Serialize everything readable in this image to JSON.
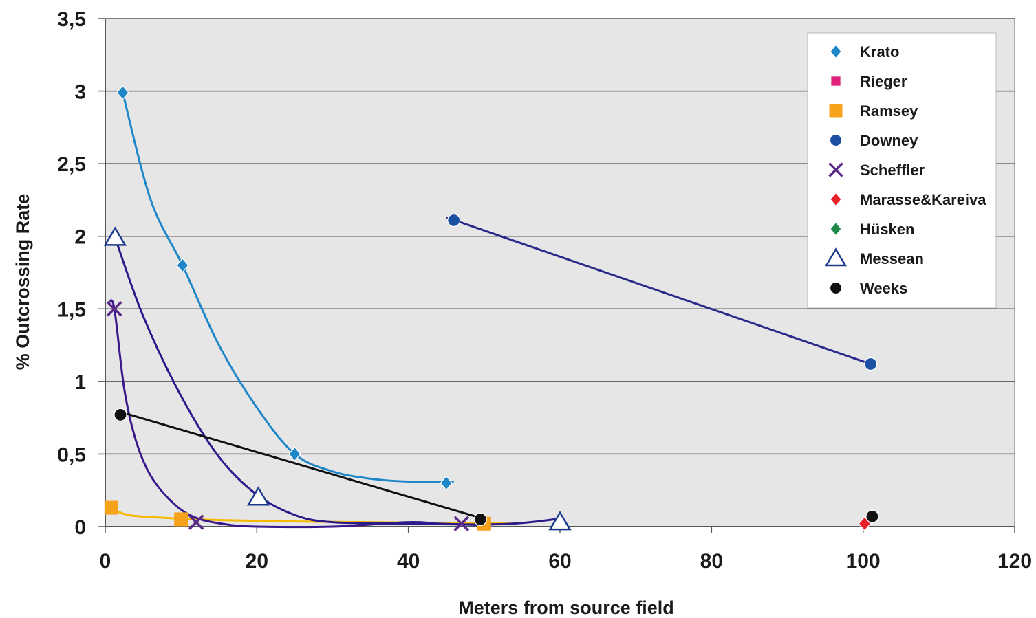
{
  "chart_data": {
    "type": "scatter",
    "xlabel": "Meters from source field",
    "ylabel": "% Outcrossing Rate",
    "xlim": [
      0,
      120
    ],
    "ylim": [
      0,
      3.5
    ],
    "x_ticks": [
      0,
      20,
      40,
      60,
      80,
      100,
      120
    ],
    "x_tick_labels": [
      "0",
      "20",
      "40",
      "60",
      "80",
      "100",
      "120"
    ],
    "y_ticks": [
      0,
      0.5,
      1,
      1.5,
      2,
      2.5,
      3,
      3.5
    ],
    "y_tick_labels": [
      "0",
      "0,5",
      "1",
      "1,5",
      "2",
      "2,5",
      "3",
      "3,5"
    ],
    "grid": "horizontal",
    "plot_background": "#e6e6e6",
    "legend_position": "top-right",
    "series": [
      {
        "name": "Krato",
        "marker": "diamond",
        "color": "#1f86c8",
        "points": [
          [
            2.3,
            2.99
          ],
          [
            10.2,
            1.8
          ],
          [
            25,
            0.5
          ],
          [
            45,
            0.3
          ]
        ],
        "curve": [
          [
            2.3,
            2.99
          ],
          [
            6,
            2.25
          ],
          [
            10.2,
            1.8
          ],
          [
            15,
            1.25
          ],
          [
            20,
            0.82
          ],
          [
            25,
            0.5
          ],
          [
            30,
            0.38
          ],
          [
            35,
            0.33
          ],
          [
            40,
            0.31
          ],
          [
            46,
            0.31
          ]
        ],
        "curve_color": "#1f86c8"
      },
      {
        "name": "Rieger",
        "marker": "square-small",
        "color": "#e0207a",
        "points": []
      },
      {
        "name": "Ramsey",
        "marker": "square",
        "color": "#f7a21b",
        "points": [
          [
            0.8,
            0.13
          ],
          [
            10,
            0.05
          ],
          [
            50,
            0.02
          ]
        ],
        "curve": [
          [
            0.8,
            0.13
          ],
          [
            3,
            0.08
          ],
          [
            8,
            0.06
          ],
          [
            15,
            0.045
          ],
          [
            25,
            0.035
          ],
          [
            35,
            0.03
          ],
          [
            45,
            0.025
          ],
          [
            54,
            0.02
          ]
        ],
        "curve_color": "#f7b800"
      },
      {
        "name": "Downey",
        "marker": "circle",
        "color": "#1a4fa3",
        "points": [
          [
            46,
            2.11
          ],
          [
            101,
            1.12
          ]
        ],
        "curve": [
          [
            45,
            2.13
          ],
          [
            101,
            1.12
          ]
        ],
        "curve_color": "#2a2a8a"
      },
      {
        "name": "Scheffler",
        "marker": "x",
        "color": "#5a2a8a",
        "points": [
          [
            1.2,
            1.5
          ],
          [
            12,
            0.03
          ],
          [
            47,
            0.02
          ]
        ],
        "curve": [
          [
            0.5,
            1.55
          ],
          [
            1.2,
            1.5
          ],
          [
            2.5,
            0.95
          ],
          [
            4,
            0.6
          ],
          [
            6,
            0.35
          ],
          [
            9,
            0.16
          ],
          [
            12,
            0.06
          ],
          [
            16,
            0.015
          ],
          [
            20,
            0.0
          ],
          [
            30,
            0.0
          ],
          [
            40,
            0.03
          ],
          [
            44,
            0.02
          ],
          [
            50,
            0.01
          ]
        ],
        "curve_color": "#3a1a8a"
      },
      {
        "name": "Marasse&Kareiva",
        "marker": "diamond",
        "color": "#e8202a",
        "points": [
          [
            100.2,
            0.02
          ]
        ]
      },
      {
        "name": "Hüsken",
        "marker": "diamond",
        "color": "#1e8a4a",
        "points": []
      },
      {
        "name": "Messean",
        "marker": "triangle-open",
        "color": "#1a3a8c",
        "points": [
          [
            1.3,
            1.99
          ],
          [
            20.2,
            0.2
          ],
          [
            60,
            0.03
          ]
        ],
        "curve": [
          [
            1.3,
            1.99
          ],
          [
            5,
            1.45
          ],
          [
            10,
            0.9
          ],
          [
            15,
            0.48
          ],
          [
            20,
            0.22
          ],
          [
            25,
            0.08
          ],
          [
            30,
            0.03
          ],
          [
            40,
            0.02
          ],
          [
            50,
            0.015
          ],
          [
            55,
            0.025
          ],
          [
            60,
            0.055
          ]
        ],
        "curve_color": "#2a1a8a"
      },
      {
        "name": "Weeks",
        "marker": "circle",
        "color": "#111111",
        "points": [
          [
            2,
            0.77
          ],
          [
            49.5,
            0.05
          ],
          [
            101.2,
            0.07
          ]
        ],
        "curve": [
          [
            2,
            0.79
          ],
          [
            49.5,
            0.06
          ]
        ],
        "curve_color": "#111111"
      }
    ]
  }
}
